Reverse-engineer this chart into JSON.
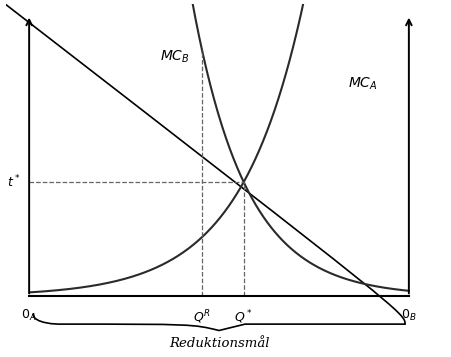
{
  "q_r": 0.455,
  "q_star": 0.565,
  "t_star": 0.43,
  "curve_color": "#2a2a2a",
  "dashed_color": "#666666",
  "line_width": 1.5,
  "figsize": [
    4.51,
    3.57
  ],
  "dpi": 100,
  "mc_b_k": 7.0,
  "mc_a_k": 6.0,
  "label_0A": "$0_A$",
  "label_0B": "$0_B$",
  "label_QR": "$Q^R$",
  "label_Qstar": "$Q^*$",
  "label_tstar": "$t^*$",
  "label_MCB": "$MC_B$",
  "label_MCA": "$MC_A$",
  "label_brace": "Reduktionsmål"
}
